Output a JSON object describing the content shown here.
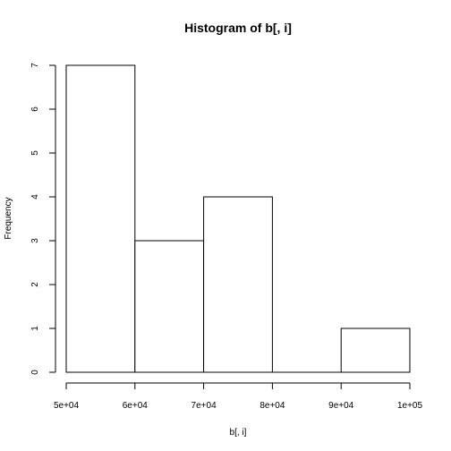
{
  "chart_data": {
    "type": "bar",
    "title": "Histogram of b[, i]",
    "xlabel": "b[, i]",
    "ylabel": "Frequency",
    "bins": [
      {
        "start": 50000,
        "end": 60000,
        "count": 7
      },
      {
        "start": 60000,
        "end": 70000,
        "count": 3
      },
      {
        "start": 70000,
        "end": 80000,
        "count": 4
      },
      {
        "start": 80000,
        "end": 90000,
        "count": 0
      },
      {
        "start": 90000,
        "end": 100000,
        "count": 1
      }
    ],
    "xlim": [
      50000,
      100000
    ],
    "ylim": [
      0,
      7
    ],
    "x_ticks": [
      50000,
      60000,
      70000,
      80000,
      90000,
      100000
    ],
    "x_tick_labels": [
      "5e+04",
      "6e+04",
      "7e+04",
      "8e+04",
      "9e+04",
      "1e+05"
    ],
    "y_ticks": [
      0,
      1,
      2,
      3,
      4,
      5,
      6,
      7
    ],
    "y_tick_labels": [
      "0",
      "1",
      "2",
      "3",
      "4",
      "5",
      "6",
      "7"
    ],
    "grid": false,
    "legend": false,
    "colors": {
      "bar_fill": "#ffffff",
      "bar_stroke": "#000000",
      "axis": "#000000"
    }
  }
}
